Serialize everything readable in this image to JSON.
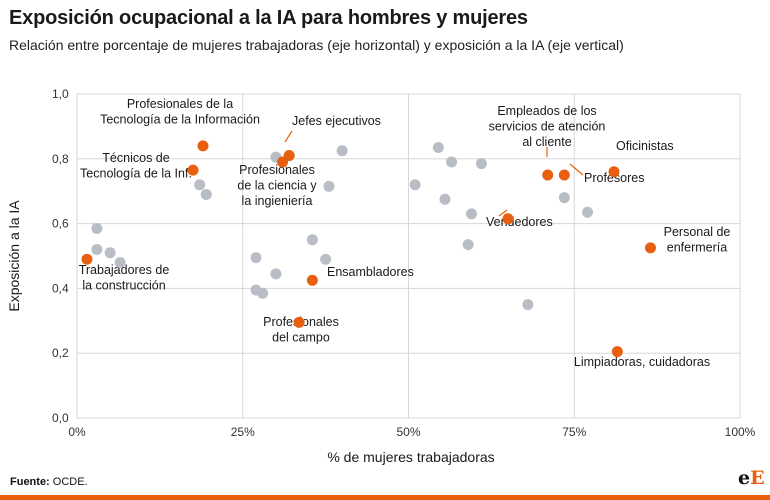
{
  "title": "Exposición ocupacional a la IA para hombres y mujeres",
  "subtitle": "Relación entre porcentaje de mujeres trabajadoras (eje horizontal) y exposición a la IA (eje vertical)",
  "source_label": "Fuente:",
  "source_value": "OCDE.",
  "logo": {
    "part1": "e",
    "part2": "E"
  },
  "colors": {
    "highlight": "#e8600f",
    "other": "#b9bec6",
    "grid": "#d7d7d7",
    "text": "#1a1a1a",
    "accent_rule": "#e8600f"
  },
  "chart_data": {
    "type": "scatter",
    "xlabel": "% de mujeres trabajadoras",
    "ylabel": "Exposición a la IA",
    "xlim": [
      0,
      100
    ],
    "ylim": [
      0,
      1
    ],
    "xticks": [
      0,
      25,
      50,
      75,
      100
    ],
    "xtick_labels": [
      "0%",
      "25%",
      "50%",
      "75%",
      "100%"
    ],
    "yticks": [
      0,
      0.2,
      0.4,
      0.6,
      0.8,
      1.0
    ],
    "ytick_labels": [
      "0,0",
      "0,2",
      "0,4",
      "0,6",
      "0,8",
      "1,0"
    ],
    "grid": true,
    "highlighted": [
      {
        "label": "Profesionales de la Tecnología de la Información",
        "lines": [
          "Profesionales de la",
          "Tecnología de la Información"
        ],
        "x": 19,
        "y": 0.84
      },
      {
        "label": "Jefes ejecutivos",
        "lines": [
          "Jefes ejecutivos"
        ],
        "x": 32,
        "y": 0.81
      },
      {
        "label": "Técnicos de Tecnología de la Inf.",
        "lines": [
          "Técnicos de",
          "Tecnología de la Inf."
        ],
        "x": 17.5,
        "y": 0.765
      },
      {
        "label": "Profesionales de la ciencia y la ingieniería",
        "lines": [
          "Profesionales",
          "de la ciencia y",
          "la ingieniería"
        ],
        "x": 31,
        "y": 0.79
      },
      {
        "label": "Empleados de los servicios de atención al cliente",
        "lines": [
          "Empleados de los",
          "servicios de atención",
          "al cliente"
        ],
        "x": 71,
        "y": 0.75
      },
      {
        "label": "Profesores",
        "lines": [
          "Profesores"
        ],
        "x": 73.5,
        "y": 0.75
      },
      {
        "label": "Oficinistas",
        "lines": [
          "Oficinistas"
        ],
        "x": 81,
        "y": 0.76
      },
      {
        "label": "Vendedores",
        "lines": [
          "Vendedores"
        ],
        "x": 65,
        "y": 0.615
      },
      {
        "label": "Personal de enfermería",
        "lines": [
          "Personal de",
          "enfermería"
        ],
        "x": 86.5,
        "y": 0.525
      },
      {
        "label": "Trabajadores de la construcción",
        "lines": [
          "Trabajadores de",
          "la construcción"
        ],
        "x": 1.5,
        "y": 0.49
      },
      {
        "label": "Ensambladores",
        "lines": [
          "Ensambladores"
        ],
        "x": 35.5,
        "y": 0.425
      },
      {
        "label": "Profesionales del campo",
        "lines": [
          "Profesionales",
          "del campo"
        ],
        "x": 33.5,
        "y": 0.295
      },
      {
        "label": "Limpiadoras, cuidadoras",
        "lines": [
          "Limpiadoras, cuidadoras"
        ],
        "x": 81.5,
        "y": 0.205
      }
    ],
    "others": [
      {
        "x": 30,
        "y": 0.805
      },
      {
        "x": 40,
        "y": 0.825
      },
      {
        "x": 38,
        "y": 0.715
      },
      {
        "x": 18.5,
        "y": 0.72
      },
      {
        "x": 19.5,
        "y": 0.69
      },
      {
        "x": 3,
        "y": 0.585
      },
      {
        "x": 3,
        "y": 0.52
      },
      {
        "x": 5,
        "y": 0.51
      },
      {
        "x": 6.5,
        "y": 0.48
      },
      {
        "x": 27,
        "y": 0.495
      },
      {
        "x": 35.5,
        "y": 0.55
      },
      {
        "x": 37.5,
        "y": 0.49
      },
      {
        "x": 30,
        "y": 0.445
      },
      {
        "x": 27,
        "y": 0.395
      },
      {
        "x": 28,
        "y": 0.385
      },
      {
        "x": 54.5,
        "y": 0.835
      },
      {
        "x": 56.5,
        "y": 0.79
      },
      {
        "x": 61,
        "y": 0.785
      },
      {
        "x": 51,
        "y": 0.72
      },
      {
        "x": 55.5,
        "y": 0.675
      },
      {
        "x": 59.5,
        "y": 0.63
      },
      {
        "x": 59,
        "y": 0.535
      },
      {
        "x": 68,
        "y": 0.35
      },
      {
        "x": 73.5,
        "y": 0.68
      },
      {
        "x": 77,
        "y": 0.635
      }
    ]
  }
}
